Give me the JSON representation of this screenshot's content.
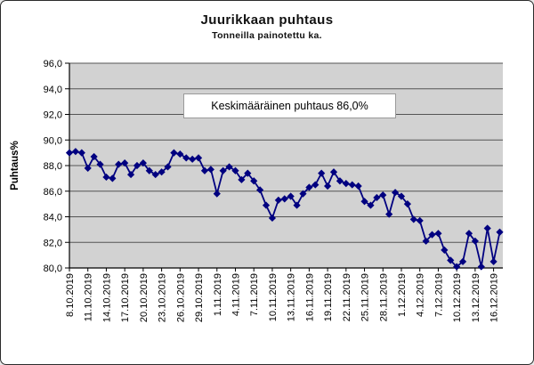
{
  "header": {
    "title": "Juurikkaan puhtaus",
    "subtitle": "Tonneilla painotettu ka."
  },
  "annotation": {
    "text": "Keskimääräinen puhtaus 86,0%"
  },
  "chart_data": {
    "type": "line",
    "title": "Juurikkaan puhtaus",
    "subtitle": "Tonneilla painotettu ka.",
    "ylabel": "Puhtaus%",
    "ylim": [
      80,
      96
    ],
    "ytick_step": 2,
    "ytick_labels": [
      "80,0",
      "82,0",
      "84,0",
      "86,0",
      "88,0",
      "90,0",
      "92,0",
      "94,0",
      "96,0"
    ],
    "x_label_every": 3,
    "grid": true,
    "legend": "none",
    "marker": "diamond",
    "annotation": "Keskimääräinen puhtaus 86,0%",
    "colors": {
      "line": "#000080",
      "plot_bg": "#d2d2d2",
      "grid": "#555555",
      "axis": "#000000",
      "text": "#000000"
    },
    "x": [
      "8.10.2019",
      "9.10.2019",
      "10.10.2019",
      "11.10.2019",
      "12.10.2019",
      "13.10.2019",
      "14.10.2019",
      "15.10.2019",
      "16.10.2019",
      "17.10.2019",
      "18.10.2019",
      "19.10.2019",
      "20.10.2019",
      "21.10.2019",
      "22.10.2019",
      "23.10.2019",
      "24.10.2019",
      "25.10.2019",
      "26.10.2019",
      "27.10.2019",
      "28.10.2019",
      "29.10.2019",
      "30.10.2019",
      "31.10.2019",
      "1.11.2019",
      "2.11.2019",
      "3.11.2019",
      "4.11.2019",
      "5.11.2019",
      "6.11.2019",
      "7.11.2019",
      "8.11.2019",
      "9.11.2019",
      "10.11.2019",
      "11.11.2019",
      "12.11.2019",
      "13.11.2019",
      "14.11.2019",
      "15.11.2019",
      "16.11.2019",
      "17.11.2019",
      "18.11.2019",
      "19.11.2019",
      "20.11.2019",
      "21.11.2019",
      "22.11.2019",
      "23.11.2019",
      "24.11.2019",
      "25.11.2019",
      "26.11.2019",
      "27.11.2019",
      "28.11.2019",
      "29.11.2019",
      "30.11.2019",
      "1.12.2019",
      "2.12.2019",
      "3.12.2019",
      "4.12.2019",
      "5.12.2019",
      "6.12.2019",
      "7.12.2019",
      "8.12.2019",
      "9.12.2019",
      "10.12.2019",
      "11.12.2019",
      "12.12.2019",
      "13.12.2019",
      "14.12.2019",
      "15.12.2019",
      "16.12.2019",
      "17.12.2019"
    ],
    "series": [
      {
        "name": "Puhtaus%",
        "values": [
          89.0,
          89.1,
          89.0,
          87.8,
          88.7,
          88.1,
          87.1,
          87.0,
          88.1,
          88.2,
          87.3,
          88.0,
          88.2,
          87.6,
          87.3,
          87.5,
          87.9,
          89.0,
          88.9,
          88.6,
          88.5,
          88.6,
          87.6,
          87.7,
          85.8,
          87.6,
          87.9,
          87.6,
          86.9,
          87.4,
          86.8,
          86.1,
          84.9,
          83.9,
          85.3,
          85.4,
          85.6,
          84.9,
          85.8,
          86.3,
          86.5,
          87.4,
          86.4,
          87.5,
          86.8,
          86.6,
          86.5,
          86.4,
          85.2,
          84.9,
          85.5,
          85.7,
          84.2,
          85.9,
          85.6,
          85.0,
          83.8,
          83.7,
          82.1,
          82.6,
          82.7,
          81.4,
          80.6,
          80.1,
          80.5,
          82.7,
          82.1,
          80.1,
          83.1,
          80.5,
          82.8
        ]
      }
    ]
  }
}
